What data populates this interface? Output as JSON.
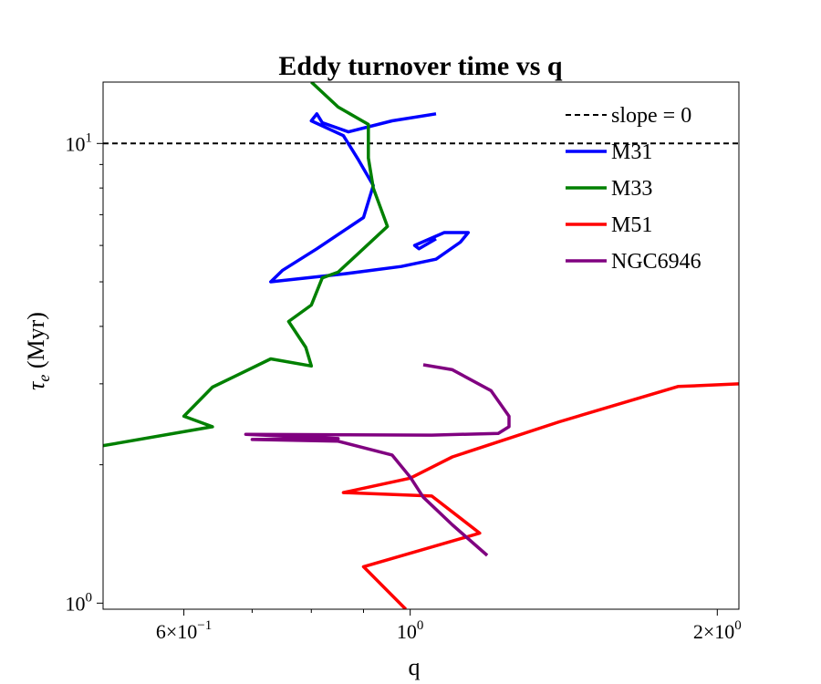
{
  "chart_data": {
    "type": "line",
    "title": "Eddy turnover time vs q",
    "xlabel": "q",
    "ylabel": "τe (Myr)",
    "xscale": "log",
    "yscale": "log",
    "xlim": [
      0.5,
      2.1
    ],
    "ylim": [
      0.97,
      13.6
    ],
    "xticks": [
      {
        "value": 0.6,
        "mant": "6×10",
        "exp": "−1"
      },
      {
        "value": 1.0,
        "mant": "10",
        "exp": "0"
      },
      {
        "value": 2.0,
        "mant": "2×10",
        "exp": "0"
      }
    ],
    "yticks": [
      {
        "value": 1.0,
        "mant": "10",
        "exp": "0"
      },
      {
        "value": 10.0,
        "mant": "10",
        "exp": "1"
      }
    ],
    "grid": false,
    "legend_position": "top-right",
    "reference_line": {
      "name": "slope = 0",
      "y": 10.0,
      "color": "#000000",
      "dash": "6,4"
    },
    "series": [
      {
        "name": "M31",
        "color": "#0000ff",
        "points": [
          [
            1.06,
            11.6
          ],
          [
            0.96,
            11.2
          ],
          [
            0.87,
            10.6
          ],
          [
            0.82,
            11.1
          ],
          [
            0.81,
            11.6
          ],
          [
            0.8,
            11.2
          ],
          [
            0.86,
            10.4
          ],
          [
            0.89,
            9.2
          ],
          [
            0.92,
            8.1
          ],
          [
            0.9,
            6.9
          ],
          [
            0.81,
            5.9
          ],
          [
            0.75,
            5.3
          ],
          [
            0.73,
            5.0
          ],
          [
            0.86,
            5.2
          ],
          [
            0.98,
            5.4
          ],
          [
            1.06,
            5.6
          ],
          [
            1.12,
            6.1
          ],
          [
            1.14,
            6.4
          ],
          [
            1.08,
            6.4
          ],
          [
            1.01,
            6.0
          ],
          [
            1.02,
            5.9
          ],
          [
            1.06,
            6.2
          ]
        ]
      },
      {
        "name": "M33",
        "color": "#008000",
        "points": [
          [
            0.5,
            2.2
          ],
          [
            0.64,
            2.42
          ],
          [
            0.6,
            2.55
          ],
          [
            0.64,
            2.95
          ],
          [
            0.73,
            3.4
          ],
          [
            0.8,
            3.28
          ],
          [
            0.79,
            3.6
          ],
          [
            0.76,
            4.1
          ],
          [
            0.8,
            4.45
          ],
          [
            0.82,
            5.1
          ],
          [
            0.85,
            5.25
          ],
          [
            0.95,
            6.6
          ],
          [
            0.92,
            8.0
          ],
          [
            0.91,
            9.3
          ],
          [
            0.91,
            11.0
          ],
          [
            0.85,
            12.0
          ],
          [
            0.8,
            13.6
          ]
        ]
      },
      {
        "name": "M51",
        "color": "#ff0000",
        "points": [
          [
            0.99,
            0.97
          ],
          [
            0.9,
            1.2
          ],
          [
            1.17,
            1.42
          ],
          [
            1.05,
            1.71
          ],
          [
            0.86,
            1.74
          ],
          [
            1.0,
            1.87
          ],
          [
            1.1,
            2.08
          ],
          [
            1.4,
            2.48
          ],
          [
            1.83,
            2.96
          ],
          [
            2.1,
            3.0
          ]
        ]
      },
      {
        "name": "NGC6946",
        "color": "#800080",
        "points": [
          [
            1.19,
            1.27
          ],
          [
            1.1,
            1.48
          ],
          [
            1.03,
            1.7
          ],
          [
            1.0,
            1.88
          ],
          [
            0.96,
            2.1
          ],
          [
            0.85,
            2.25
          ],
          [
            0.7,
            2.27
          ],
          [
            0.85,
            2.28
          ],
          [
            0.69,
            2.33
          ],
          [
            1.05,
            2.32
          ],
          [
            1.22,
            2.34
          ],
          [
            1.25,
            2.42
          ],
          [
            1.25,
            2.55
          ],
          [
            1.2,
            2.9
          ],
          [
            1.1,
            3.22
          ],
          [
            1.03,
            3.3
          ]
        ]
      }
    ]
  }
}
